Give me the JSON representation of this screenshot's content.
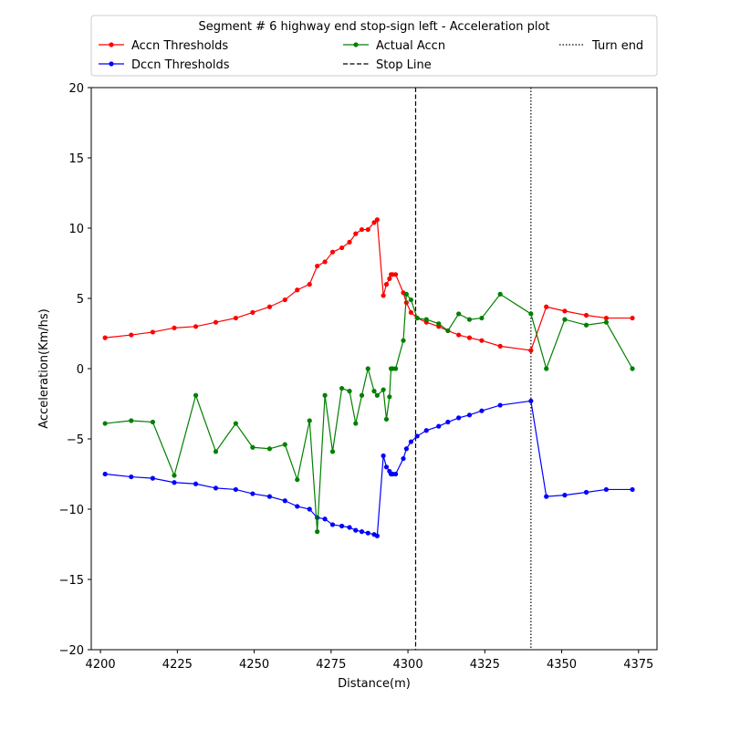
{
  "chart_data": {
    "type": "line",
    "title": "Segment # 6 highway end stop-sign left - Acceleration plot",
    "xlabel": "Distance(m)",
    "ylabel": "Acceleration(Km/hs)",
    "xlim": [
      4197,
      4381
    ],
    "ylim": [
      -20,
      20
    ],
    "xticks": [
      4200,
      4225,
      4250,
      4275,
      4300,
      4325,
      4350,
      4375
    ],
    "yticks": [
      -20,
      -15,
      -10,
      -5,
      0,
      5,
      10,
      15,
      20
    ],
    "xtick_labels": [
      "4200",
      "4225",
      "4250",
      "4275",
      "4300",
      "4325",
      "4350",
      "4375"
    ],
    "ytick_labels": [
      "−20",
      "−15",
      "−10",
      "−5",
      "0",
      "5",
      "10",
      "15",
      "20"
    ],
    "grid": false,
    "legend_placement": "top",
    "series": [
      {
        "name": "Accn Thresholds",
        "color": "#ff0000",
        "x": [
          4201.5,
          4210,
          4217,
          4224,
          4231,
          4237.5,
          4244,
          4249.5,
          4255,
          4260,
          4264,
          4268,
          4270.5,
          4273,
          4275.5,
          4278.5,
          4281,
          4283,
          4285,
          4287,
          4289,
          4290,
          4292,
          4293,
          4294,
          4294.5,
          4295,
          4296,
          4298.5,
          4299.5,
          4301,
          4303,
          4306,
          4310,
          4313,
          4316.5,
          4320,
          4324,
          4330,
          4340,
          4345,
          4351,
          4358,
          4364.5,
          4373
        ],
        "y": [
          2.2,
          2.4,
          2.6,
          2.9,
          3.0,
          3.3,
          3.6,
          4.0,
          4.4,
          4.9,
          5.6,
          6.0,
          7.3,
          7.6,
          8.3,
          8.6,
          9.0,
          9.6,
          9.9,
          9.9,
          10.4,
          10.6,
          5.2,
          6.0,
          6.4,
          6.7,
          6.7,
          6.7,
          5.4,
          4.7,
          4.0,
          3.6,
          3.3,
          3.0,
          2.7,
          2.4,
          2.2,
          2.0,
          1.6,
          1.3,
          4.4,
          4.1,
          3.8,
          3.6,
          3.6
        ]
      },
      {
        "name": "Dccn Thresholds",
        "color": "#0000ff",
        "x": [
          4201.5,
          4210,
          4217,
          4224,
          4231,
          4237.5,
          4244,
          4249.5,
          4255,
          4260,
          4264,
          4268,
          4270.5,
          4273,
          4275.5,
          4278.5,
          4281,
          4283,
          4285,
          4287,
          4289,
          4290,
          4292,
          4293,
          4294,
          4294.5,
          4295,
          4296,
          4298.5,
          4299.5,
          4301,
          4303,
          4306,
          4310,
          4313,
          4316.5,
          4320,
          4324,
          4330,
          4340,
          4345,
          4351,
          4358,
          4364.5,
          4373
        ],
        "y": [
          -7.5,
          -7.7,
          -7.8,
          -8.1,
          -8.2,
          -8.5,
          -8.6,
          -8.9,
          -9.1,
          -9.4,
          -9.8,
          -10.0,
          -10.6,
          -10.7,
          -11.1,
          -11.2,
          -11.3,
          -11.5,
          -11.6,
          -11.7,
          -11.8,
          -11.9,
          -6.2,
          -7.0,
          -7.3,
          -7.5,
          -7.5,
          -7.5,
          -6.4,
          -5.7,
          -5.2,
          -4.8,
          -4.4,
          -4.1,
          -3.8,
          -3.5,
          -3.3,
          -3.0,
          -2.6,
          -2.3,
          -9.1,
          -9.0,
          -8.8,
          -8.6,
          -8.6
        ]
      },
      {
        "name": "Actual Accn",
        "color": "#008000",
        "x": [
          4201.5,
          4210,
          4217,
          4224,
          4231,
          4237.5,
          4244,
          4249.5,
          4255,
          4260,
          4264,
          4268,
          4270.5,
          4273,
          4275.5,
          4278.5,
          4281,
          4283,
          4285,
          4287,
          4289,
          4290,
          4292,
          4293,
          4294,
          4294.5,
          4295,
          4296,
          4298.5,
          4299.5,
          4301,
          4303,
          4306,
          4310,
          4313,
          4316.5,
          4320,
          4324,
          4330,
          4340,
          4345,
          4351,
          4358,
          4364.5,
          4373
        ],
        "y": [
          -3.9,
          -3.7,
          -3.8,
          -7.6,
          -1.9,
          -5.9,
          -3.9,
          -5.6,
          -5.7,
          -5.4,
          -7.9,
          -3.7,
          -11.6,
          -1.9,
          -5.9,
          -1.4,
          -1.6,
          -3.9,
          -1.9,
          0.0,
          -1.6,
          -1.9,
          -1.5,
          -3.6,
          -2.0,
          0.0,
          0.0,
          0.0,
          2.0,
          5.3,
          4.9,
          3.6,
          3.5,
          3.2,
          2.7,
          3.9,
          3.5,
          3.6,
          5.3,
          3.9,
          0.0,
          3.5,
          3.1,
          3.3,
          0.0
        ]
      }
    ],
    "reference_lines": [
      {
        "name": "Stop Line",
        "x": 4302.5,
        "style": "dashed"
      },
      {
        "name": "Turn end",
        "x": 4340,
        "style": "dotted"
      }
    ]
  }
}
